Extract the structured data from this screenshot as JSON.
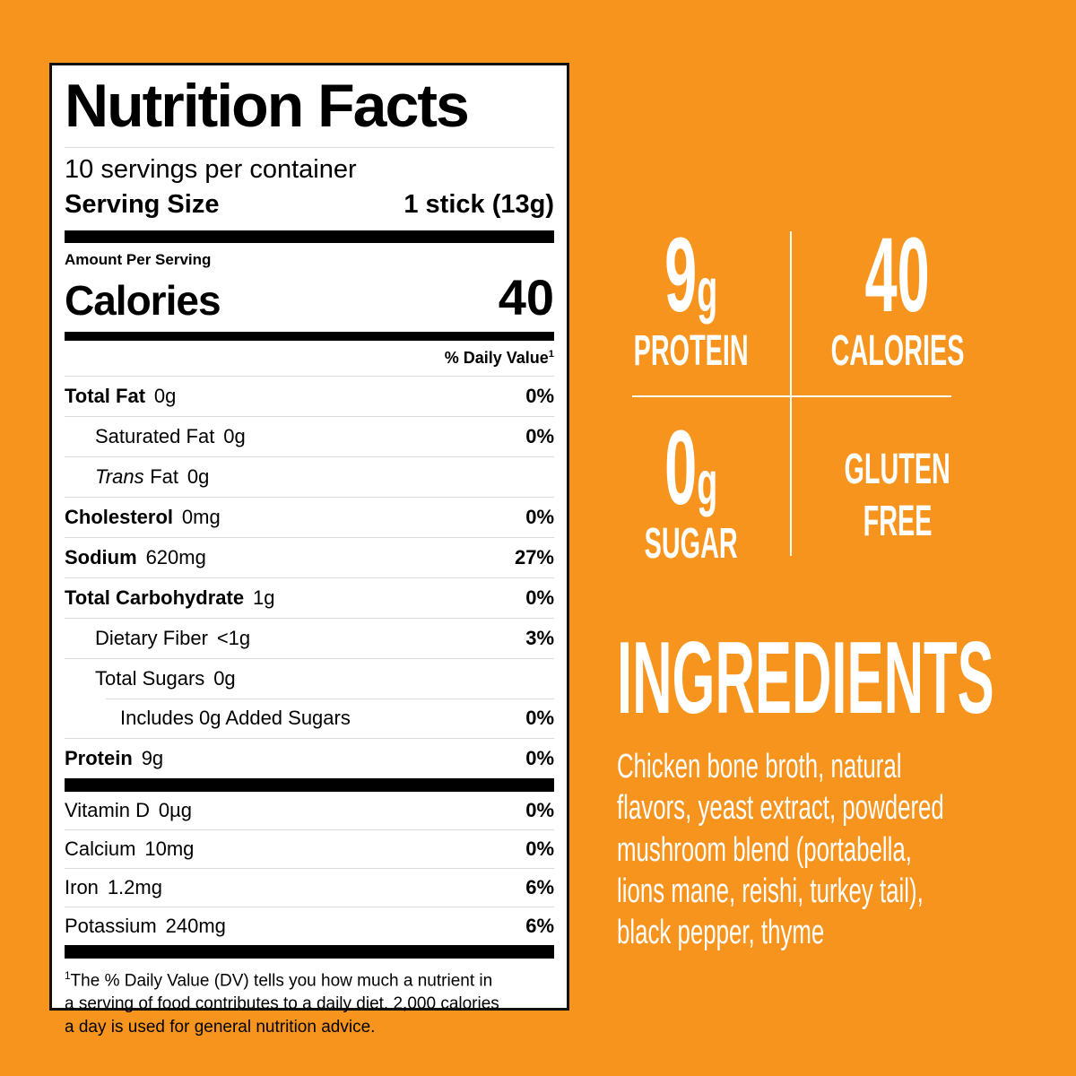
{
  "colors": {
    "background_orange": "#F7941E",
    "panel_white": "#FFFFFF",
    "text_black": "#000000",
    "text_white": "#FFFFFF",
    "hairline_gray": "#DBDBDB"
  },
  "label": {
    "title": "Nutrition Facts",
    "servings_per_container": "10 servings per container",
    "serving_size_label": "Serving Size",
    "serving_size_value": "1 stick (13g)",
    "amount_per_serving": "Amount Per Serving",
    "calories_label": "Calories",
    "calories_value": "40",
    "daily_value_header": "% Daily Value",
    "daily_value_sup": "1",
    "rows": [
      {
        "name": "Total Fat",
        "amount": "0g",
        "dv": "0%"
      },
      {
        "name": "Saturated Fat",
        "amount": "0g",
        "dv": "0%"
      },
      {
        "name_italic": "Trans",
        "name": "Fat",
        "amount": "0g",
        "dv": ""
      },
      {
        "name": "Cholesterol",
        "amount": "0mg",
        "dv": "0%"
      },
      {
        "name": "Sodium",
        "amount": "620mg",
        "dv": "27%"
      },
      {
        "name": "Total Carbohydrate",
        "amount": "1g",
        "dv": "0%"
      },
      {
        "name": "Dietary Fiber",
        "amount": "<1g",
        "dv": "3%"
      },
      {
        "name": "Total Sugars",
        "amount": "0g",
        "dv": ""
      },
      {
        "name": "Includes 0g Added Sugars",
        "amount": "",
        "dv": "0%"
      },
      {
        "name": "Protein",
        "amount": "9g",
        "dv": "0%"
      }
    ],
    "vitamins": [
      {
        "name": "Vitamin D",
        "amount": "0µg",
        "dv": "0%"
      },
      {
        "name": "Calcium",
        "amount": "10mg",
        "dv": "0%"
      },
      {
        "name": "Iron",
        "amount": "1.2mg",
        "dv": "6%"
      },
      {
        "name": "Potassium",
        "amount": "240mg",
        "dv": "6%"
      }
    ],
    "footnote_sup": "1",
    "footnote_lines": [
      "The % Daily Value (DV) tells you how much a nutrient in",
      "a serving of food contributes to a daily diet. 2,000 calories",
      "a day is used for general nutrition advice."
    ]
  },
  "highlights": {
    "protein": {
      "number": "9",
      "unit": "g",
      "label": "PROTEIN"
    },
    "calories": {
      "number": "40",
      "unit": "",
      "label": "CALORIES"
    },
    "sugar": {
      "number": "0",
      "unit": "g",
      "label": "SUGAR"
    },
    "gluten": {
      "line1": "GLUTEN",
      "line2": "FREE"
    }
  },
  "ingredients": {
    "title": "INGREDIENTS",
    "lines": [
      "Chicken bone broth, natural",
      "flavors, yeast extract, powdered",
      "mushroom blend (portabella,",
      "lions mane, reishi, turkey tail),",
      "black pepper, thyme"
    ]
  }
}
